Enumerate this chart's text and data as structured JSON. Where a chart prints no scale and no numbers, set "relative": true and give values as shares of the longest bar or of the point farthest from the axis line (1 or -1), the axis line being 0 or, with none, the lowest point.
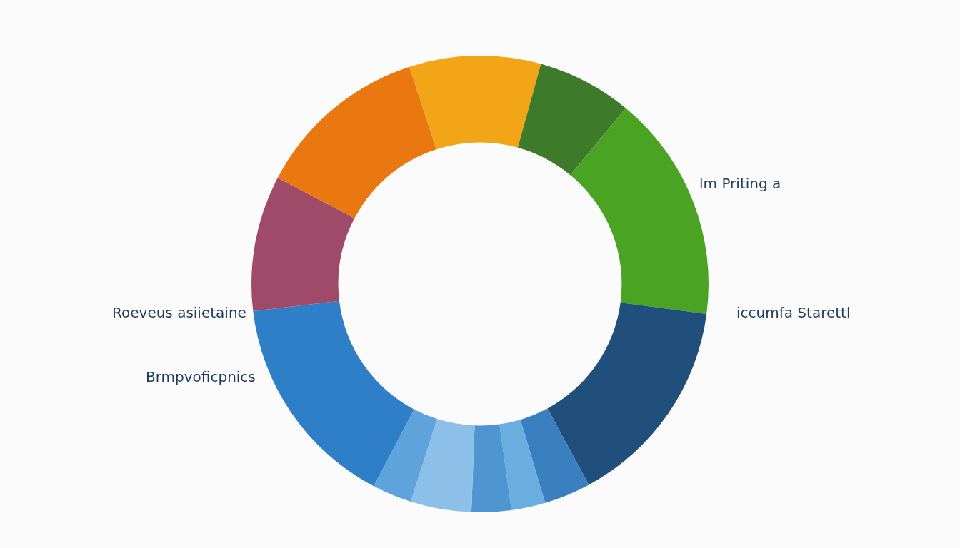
{
  "chart_data": {
    "type": "donut",
    "relative": true,
    "categories": [
      null,
      null,
      null,
      null,
      null,
      null,
      null,
      null,
      null,
      null,
      null,
      null
    ],
    "values": [
      9.3,
      6.7,
      16.1,
      15,
      3.3,
      2.4,
      2.8,
      4.3,
      2.8,
      15.4,
      9.6,
      12.3
    ],
    "colors": [
      "#f2a516",
      "#3d7a2a",
      "#4aa322",
      "#1f4f7a",
      "#3a7fbf",
      "#6aaee0",
      "#4f95d2",
      "#8cc0e8",
      "#5fa3dc",
      "#2f7fc8",
      "#a04a6a",
      "#e8780f"
    ],
    "annotations": [
      "lm Priting a",
      "Roeveus asiietaine",
      "iccumfa Starettl",
      "Brmpvoficpnics"
    ]
  }
}
